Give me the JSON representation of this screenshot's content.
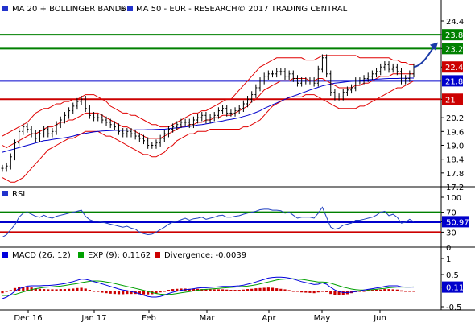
{
  "header": {
    "series_label": "MA 20 + BOLLINGER BANDS",
    "ma50_label": "MA 50 - EUR - RESEARCH",
    "copyright": "© 2017 TRADING CENTRAL"
  },
  "colors": {
    "price": "#000000",
    "bollinger": "#e00000",
    "ma20": "#e00000",
    "ma50": "#0000cc",
    "resistance": "#008000",
    "pivot": "#0000cc",
    "support": "#cc0000",
    "rsi": "#1f3fc0",
    "macd": "#0000dd",
    "signal": "#00a000",
    "divergence": "#cc0000",
    "axis_label_current": "#0000cc",
    "target_arrow": "#1a3aa8"
  },
  "chart_data": [
    {
      "type": "candlestick",
      "panel": "price",
      "ylim": [
        17.2,
        24.8
      ],
      "y_ticks": [
        "24.4",
        "23.8",
        "23.2",
        "22.4",
        "21.8",
        "21",
        "20.2",
        "19.6",
        "19.0",
        "18.4",
        "17.8",
        "17.2"
      ],
      "x_labels": [
        "Dec 16",
        "Jan 17",
        "Feb",
        "Mar",
        "Apr",
        "May",
        "Jun"
      ],
      "levels": [
        {
          "label": "23.8",
          "value": 23.8,
          "kind": "resistance"
        },
        {
          "label": "23.2",
          "value": 23.2,
          "kind": "resistance"
        },
        {
          "label": "22.4",
          "value": 22.4,
          "kind": "current"
        },
        {
          "label": "21.8",
          "value": 21.8,
          "kind": "pivot"
        },
        {
          "label": "21",
          "value": 21.0,
          "kind": "support"
        }
      ],
      "close": [
        18.0,
        18.1,
        18.5,
        19.1,
        19.6,
        19.8,
        19.7,
        19.5,
        19.3,
        19.5,
        19.7,
        19.5,
        19.6,
        19.9,
        20.1,
        20.3,
        20.5,
        20.7,
        20.9,
        21.0,
        20.6,
        20.3,
        20.2,
        20.2,
        20.1,
        20.0,
        19.9,
        19.8,
        19.6,
        19.5,
        19.6,
        19.5,
        19.4,
        19.3,
        19.2,
        19.0,
        19.0,
        19.1,
        19.3,
        19.5,
        19.7,
        19.8,
        19.9,
        20.0,
        20.0,
        19.9,
        20.1,
        20.2,
        20.3,
        20.1,
        20.2,
        20.3,
        20.5,
        20.6,
        20.4,
        20.4,
        20.5,
        20.6,
        20.8,
        21.0,
        21.2,
        21.5,
        21.8,
        22.0,
        22.1,
        22.1,
        22.2,
        22.2,
        22.0,
        22.1,
        21.9,
        21.7,
        21.8,
        21.8,
        21.8,
        21.7,
        22.3,
        22.8,
        22.1,
        21.3,
        21.1,
        21.1,
        21.3,
        21.4,
        21.5,
        21.8,
        21.8,
        21.9,
        22.0,
        22.1,
        22.2,
        22.4,
        22.5,
        22.3,
        22.4,
        22.2,
        21.8,
        21.9,
        22.1,
        22.4
      ],
      "ma20": [
        19.0,
        18.9,
        19.0,
        19.1,
        19.2,
        19.3,
        19.4,
        19.5,
        19.5,
        19.6,
        19.7,
        19.8,
        19.8,
        19.9,
        20.0,
        20.0,
        20.1,
        20.1,
        20.2,
        20.3,
        20.4,
        20.4,
        20.4,
        20.4,
        20.3,
        20.2,
        20.1,
        20.0,
        19.9,
        19.8,
        19.8,
        19.7,
        19.6,
        19.5,
        19.4,
        19.3,
        19.3,
        19.3,
        19.3,
        19.4,
        19.5,
        19.6,
        19.7,
        19.8,
        19.8,
        19.9,
        19.9,
        20.0,
        20.0,
        20.1,
        20.1,
        20.2,
        20.2,
        20.3,
        20.3,
        20.3,
        20.4,
        20.5,
        20.6,
        20.7,
        20.9,
        21.0,
        21.2,
        21.4,
        21.5,
        21.6,
        21.7,
        21.8,
        21.8,
        21.8,
        21.9,
        21.9,
        21.9,
        21.9,
        21.8,
        21.8,
        21.9,
        21.9,
        21.8,
        21.7,
        21.6,
        21.5,
        21.5,
        21.5,
        21.5,
        21.6,
        21.6,
        21.7,
        21.7,
        21.8,
        21.9,
        22.0,
        22.0,
        22.0,
        22.1,
        22.1,
        22.1,
        22.1,
        22.1,
        22.1
      ],
      "bb_upper": [
        19.4,
        19.5,
        19.6,
        19.7,
        19.8,
        19.9,
        20.0,
        20.2,
        20.4,
        20.5,
        20.6,
        20.6,
        20.7,
        20.8,
        20.8,
        20.9,
        20.9,
        21.0,
        21.0,
        21.1,
        21.2,
        21.2,
        21.2,
        21.1,
        21.0,
        20.9,
        20.7,
        20.6,
        20.5,
        20.4,
        20.4,
        20.3,
        20.3,
        20.2,
        20.1,
        20.0,
        19.9,
        19.9,
        19.8,
        19.8,
        19.8,
        19.9,
        20.0,
        20.1,
        20.2,
        20.3,
        20.4,
        20.4,
        20.5,
        20.5,
        20.6,
        20.7,
        20.8,
        20.9,
        21.0,
        21.0,
        21.2,
        21.4,
        21.6,
        21.8,
        22.0,
        22.2,
        22.4,
        22.5,
        22.6,
        22.7,
        22.8,
        22.8,
        22.8,
        22.8,
        22.8,
        22.8,
        22.8,
        22.7,
        22.7,
        22.7,
        22.8,
        22.9,
        22.9,
        22.9,
        22.9,
        22.9,
        22.9,
        22.9,
        22.9,
        22.9,
        22.8,
        22.8,
        22.8,
        22.8,
        22.8,
        22.8,
        22.8,
        22.8,
        22.7,
        22.7,
        22.6,
        22.6,
        22.5,
        22.5
      ],
      "bb_lower": [
        17.6,
        17.5,
        17.4,
        17.4,
        17.5,
        17.6,
        17.8,
        18.0,
        18.2,
        18.4,
        18.6,
        18.8,
        18.9,
        19.0,
        19.1,
        19.2,
        19.3,
        19.3,
        19.4,
        19.5,
        19.6,
        19.6,
        19.6,
        19.6,
        19.5,
        19.4,
        19.4,
        19.3,
        19.2,
        19.1,
        19.0,
        18.9,
        18.8,
        18.7,
        18.6,
        18.6,
        18.5,
        18.5,
        18.6,
        18.7,
        18.9,
        19.0,
        19.2,
        19.3,
        19.4,
        19.5,
        19.5,
        19.6,
        19.6,
        19.6,
        19.7,
        19.7,
        19.7,
        19.7,
        19.7,
        19.7,
        19.7,
        19.7,
        19.8,
        19.8,
        19.9,
        20.0,
        20.1,
        20.3,
        20.5,
        20.7,
        20.8,
        20.9,
        21.0,
        21.1,
        21.1,
        21.1,
        21.1,
        21.2,
        21.2,
        21.2,
        21.1,
        21.0,
        20.9,
        20.8,
        20.7,
        20.6,
        20.6,
        20.6,
        20.6,
        20.6,
        20.7,
        20.7,
        20.8,
        20.9,
        21.0,
        21.1,
        21.2,
        21.3,
        21.4,
        21.5,
        21.5,
        21.6,
        21.7,
        21.8
      ],
      "ma50": [
        18.7,
        18.75,
        18.8,
        18.85,
        18.9,
        18.95,
        19.0,
        19.05,
        19.1,
        19.15,
        19.2,
        19.22,
        19.25,
        19.28,
        19.3,
        19.33,
        19.36,
        19.4,
        19.45,
        19.5,
        19.52,
        19.55,
        19.58,
        19.6,
        19.62,
        19.63,
        19.64,
        19.65,
        19.65,
        19.65,
        19.66,
        19.66,
        19.67,
        19.67,
        19.67,
        19.68,
        19.68,
        19.69,
        19.7,
        19.7,
        19.72,
        19.74,
        19.76,
        19.78,
        19.8,
        19.82,
        19.85,
        19.88,
        19.9,
        19.93,
        19.96,
        20.0,
        20.03,
        20.06,
        20.1,
        20.13,
        20.16,
        20.2,
        20.25,
        20.3,
        20.36,
        20.43,
        20.5,
        20.6,
        20.68,
        20.76,
        20.84,
        20.92,
        21.0,
        21.07,
        21.14,
        21.2,
        21.27,
        21.33,
        21.4,
        21.46,
        21.52,
        21.58,
        21.62,
        21.66,
        21.7,
        21.72,
        21.74,
        21.76,
        21.78,
        21.8,
        21.82,
        21.84,
        21.85,
        21.86,
        21.87,
        21.88,
        21.89,
        21.9,
        21.9,
        21.9,
        21.91,
        21.91,
        21.92,
        21.92
      ],
      "forecast_arrow": {
        "from": 22.4,
        "to": 23.4
      }
    },
    {
      "type": "line",
      "panel": "rsi",
      "title": "RSI",
      "ylim": [
        0,
        100
      ],
      "y_ticks": [
        "100",
        "70",
        "50.97",
        "30",
        "0"
      ],
      "levels": [
        {
          "label": "70",
          "value": 70,
          "kind": "overbought"
        },
        {
          "label": "50",
          "value": 50,
          "kind": "mid"
        },
        {
          "label": "30",
          "value": 30,
          "kind": "oversold"
        }
      ],
      "values": [
        20,
        25,
        35,
        45,
        60,
        68,
        70,
        66,
        62,
        60,
        64,
        60,
        58,
        62,
        64,
        66,
        68,
        70,
        72,
        74,
        62,
        55,
        52,
        52,
        50,
        48,
        46,
        44,
        42,
        40,
        42,
        38,
        36,
        30,
        27,
        25,
        26,
        30,
        35,
        40,
        46,
        50,
        52,
        55,
        58,
        54,
        57,
        58,
        60,
        56,
        58,
        60,
        63,
        64,
        60,
        60,
        62,
        63,
        66,
        68,
        70,
        72,
        75,
        76,
        76,
        74,
        74,
        73,
        68,
        70,
        64,
        58,
        60,
        60,
        60,
        58,
        68,
        80,
        60,
        40,
        36,
        38,
        44,
        46,
        48,
        54,
        54,
        56,
        58,
        60,
        64,
        70,
        72,
        63,
        66,
        60,
        48,
        50,
        56,
        50.97
      ],
      "current_value": 50.97
    },
    {
      "type": "macd",
      "panel": "macd",
      "ylim": [
        -0.5,
        1.0
      ],
      "y_ticks": [
        "1",
        "0.5",
        "0.11",
        "-0.5"
      ],
      "legend": [
        {
          "name": "MACD (26, 12)",
          "color_key": "macd"
        },
        {
          "name": "EXP (9): 0.1162",
          "color_key": "signal"
        },
        {
          "name": "Divergence: -0.0039",
          "color_key": "divergence"
        }
      ],
      "macd": [
        -0.25,
        -0.2,
        -0.12,
        -0.02,
        0.06,
        0.1,
        0.14,
        0.15,
        0.15,
        0.15,
        0.16,
        0.16,
        0.17,
        0.18,
        0.2,
        0.22,
        0.25,
        0.28,
        0.32,
        0.36,
        0.35,
        0.32,
        0.28,
        0.25,
        0.21,
        0.17,
        0.13,
        0.09,
        0.05,
        0.02,
        0.0,
        -0.03,
        -0.06,
        -0.1,
        -0.14,
        -0.18,
        -0.2,
        -0.2,
        -0.18,
        -0.14,
        -0.09,
        -0.05,
        -0.02,
        0.01,
        0.03,
        0.04,
        0.06,
        0.08,
        0.09,
        0.09,
        0.1,
        0.11,
        0.12,
        0.13,
        0.13,
        0.13,
        0.14,
        0.15,
        0.17,
        0.2,
        0.23,
        0.27,
        0.31,
        0.35,
        0.39,
        0.41,
        0.42,
        0.42,
        0.41,
        0.39,
        0.36,
        0.32,
        0.28,
        0.25,
        0.22,
        0.19,
        0.2,
        0.24,
        0.2,
        0.1,
        0.02,
        -0.03,
        -0.06,
        -0.06,
        -0.05,
        -0.03,
        -0.01,
        0.02,
        0.04,
        0.06,
        0.08,
        0.1,
        0.13,
        0.15,
        0.15,
        0.15,
        0.12,
        0.11,
        0.11,
        0.11
      ],
      "signal": [
        -0.15,
        -0.15,
        -0.14,
        -0.12,
        -0.08,
        -0.04,
        0.0,
        0.03,
        0.06,
        0.08,
        0.1,
        0.11,
        0.12,
        0.13,
        0.14,
        0.16,
        0.18,
        0.2,
        0.22,
        0.25,
        0.27,
        0.29,
        0.3,
        0.3,
        0.29,
        0.27,
        0.25,
        0.22,
        0.19,
        0.16,
        0.13,
        0.1,
        0.07,
        0.04,
        0.01,
        -0.03,
        -0.06,
        -0.09,
        -0.11,
        -0.12,
        -0.12,
        -0.11,
        -0.09,
        -0.07,
        -0.05,
        -0.03,
        -0.01,
        0.01,
        0.03,
        0.04,
        0.05,
        0.06,
        0.07,
        0.08,
        0.09,
        0.1,
        0.11,
        0.12,
        0.13,
        0.14,
        0.16,
        0.18,
        0.21,
        0.24,
        0.27,
        0.3,
        0.33,
        0.35,
        0.36,
        0.37,
        0.37,
        0.36,
        0.35,
        0.33,
        0.31,
        0.29,
        0.27,
        0.27,
        0.26,
        0.23,
        0.19,
        0.15,
        0.11,
        0.08,
        0.05,
        0.03,
        0.02,
        0.02,
        0.02,
        0.03,
        0.04,
        0.06,
        0.07,
        0.09,
        0.1,
        0.11,
        0.11,
        0.11,
        0.11,
        0.1162
      ],
      "current_value": 0.11
    }
  ]
}
